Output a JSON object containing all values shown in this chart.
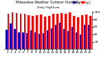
{
  "title": "Milwaukee Weather Outdoor Humidity",
  "subtitle": "Daily High/Low",
  "high_color": "#ff0000",
  "low_color": "#0000cc",
  "background_color": "#ffffff",
  "x_labels": [
    "2",
    "3",
    "4",
    "5",
    "6",
    "7",
    "8",
    "9",
    "10",
    "11",
    "12",
    "13",
    "14",
    "15",
    "16",
    "17",
    "18",
    "19",
    "20",
    "21",
    "22"
  ],
  "highs": [
    95,
    98,
    97,
    96,
    95,
    92,
    90,
    92,
    94,
    88,
    90,
    95,
    96,
    97,
    95,
    98,
    90,
    85,
    92,
    94,
    90
  ],
  "lows": [
    52,
    70,
    55,
    45,
    45,
    44,
    50,
    45,
    42,
    44,
    50,
    56,
    65,
    72,
    55,
    48,
    60,
    45,
    40,
    65,
    65
  ],
  "ylim": [
    0,
    100
  ],
  "yticks": [
    20,
    40,
    60,
    80,
    100
  ],
  "dashed_lines_idx": [
    14,
    15
  ],
  "legend_high": "High",
  "legend_low": "Low",
  "figsize": [
    1.6,
    0.87
  ],
  "dpi": 100
}
